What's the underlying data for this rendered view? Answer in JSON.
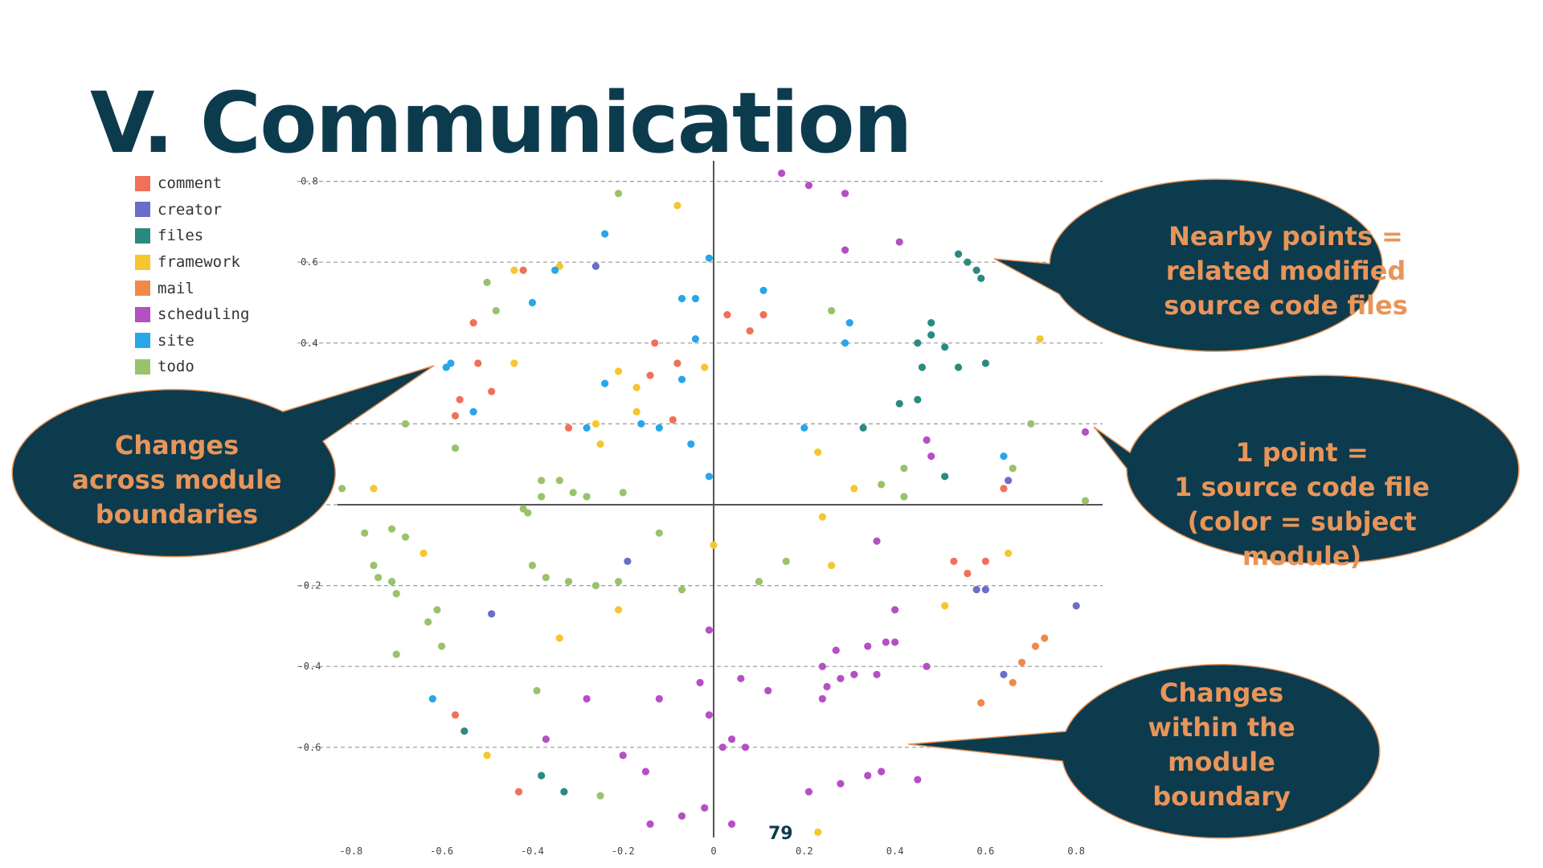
{
  "title": "V. Communication",
  "page_number": "79",
  "callouts": {
    "nearby": [
      "Nearby points =",
      "related modified",
      "source code files"
    ],
    "across": [
      "Changes",
      "across module",
      "boundaries"
    ],
    "one_point": [
      "1 point =",
      "1 source code file",
      "(color = subject",
      "module)"
    ],
    "within": [
      "Changes",
      "within the",
      "module",
      "boundary"
    ]
  },
  "chart_data": {
    "type": "scatter",
    "title": "",
    "xlabel": "",
    "ylabel": "",
    "xlim": [
      -0.82,
      0.86
    ],
    "ylim": [
      -0.82,
      0.82
    ],
    "x_ticks": [
      "-0.8",
      "-0.6",
      "-0.4",
      "-0.2",
      "0",
      "0.2",
      "0.4",
      "0.6",
      "0.8"
    ],
    "y_ticks": [
      "0.8",
      "0.6",
      "0.4",
      "0.2",
      "0",
      "-0.2",
      "-0.4",
      "-0.6"
    ],
    "grid": "horizontal dashed",
    "legend": "top-left",
    "series": [
      {
        "name": "comment",
        "color": "#f0705a",
        "points": [
          [
            -0.42,
            0.58
          ],
          [
            -0.53,
            0.45
          ],
          [
            -0.52,
            0.35
          ],
          [
            -0.56,
            0.26
          ],
          [
            -0.49,
            0.28
          ],
          [
            -0.57,
            0.22
          ],
          [
            -0.14,
            0.32
          ],
          [
            -0.13,
            0.4
          ],
          [
            -0.08,
            0.35
          ],
          [
            0.03,
            0.47
          ],
          [
            0.11,
            0.47
          ],
          [
            0.08,
            0.43
          ],
          [
            -0.09,
            0.21
          ],
          [
            -0.32,
            0.19
          ],
          [
            0.64,
            0.04
          ],
          [
            0.6,
            -0.14
          ],
          [
            0.53,
            -0.14
          ],
          [
            0.56,
            -0.17
          ],
          [
            -0.57,
            -0.52
          ],
          [
            -0.43,
            -0.71
          ]
        ]
      },
      {
        "name": "creator",
        "color": "#6a6ec9",
        "points": [
          [
            -0.26,
            0.59
          ],
          [
            0.65,
            0.06
          ],
          [
            0.58,
            -0.21
          ],
          [
            0.6,
            -0.21
          ],
          [
            0.8,
            -0.25
          ],
          [
            -0.49,
            -0.27
          ],
          [
            -0.19,
            -0.14
          ],
          [
            0.64,
            -0.42
          ]
        ]
      },
      {
        "name": "files",
        "color": "#2a8a80",
        "points": [
          [
            0.54,
            0.62
          ],
          [
            0.56,
            0.6
          ],
          [
            0.58,
            0.58
          ],
          [
            0.59,
            0.56
          ],
          [
            0.48,
            0.45
          ],
          [
            0.48,
            0.42
          ],
          [
            0.45,
            0.4
          ],
          [
            0.51,
            0.39
          ],
          [
            0.46,
            0.34
          ],
          [
            0.54,
            0.34
          ],
          [
            0.6,
            0.35
          ],
          [
            0.41,
            0.25
          ],
          [
            0.45,
            0.26
          ],
          [
            0.33,
            0.19
          ],
          [
            0.51,
            0.07
          ],
          [
            -0.55,
            -0.56
          ],
          [
            -0.38,
            -0.67
          ],
          [
            -0.33,
            -0.71
          ]
        ]
      },
      {
        "name": "framework",
        "color": "#f7c52e",
        "points": [
          [
            -0.08,
            0.74
          ],
          [
            -0.34,
            0.59
          ],
          [
            -0.44,
            0.58
          ],
          [
            -0.44,
            0.35
          ],
          [
            -0.26,
            0.2
          ],
          [
            -0.25,
            0.15
          ],
          [
            -0.17,
            0.29
          ],
          [
            -0.17,
            0.23
          ],
          [
            -0.21,
            0.33
          ],
          [
            -0.02,
            0.34
          ],
          [
            0.72,
            0.41
          ],
          [
            0.23,
            0.13
          ],
          [
            0.31,
            0.04
          ],
          [
            0.24,
            -0.03
          ],
          [
            0.26,
            -0.15
          ],
          [
            0.51,
            -0.25
          ],
          [
            0.65,
            -0.12
          ],
          [
            0.0,
            -0.1
          ],
          [
            -0.64,
            -0.12
          ],
          [
            -0.75,
            0.04
          ],
          [
            -0.5,
            -0.62
          ],
          [
            -0.34,
            -0.33
          ],
          [
            -0.21,
            -0.26
          ],
          [
            0.23,
            -0.81
          ]
        ]
      },
      {
        "name": "mail",
        "color": "#f08a48",
        "points": [
          [
            0.73,
            -0.33
          ],
          [
            0.71,
            -0.35
          ],
          [
            0.68,
            -0.39
          ],
          [
            0.66,
            -0.44
          ],
          [
            0.59,
            -0.49
          ]
        ]
      },
      {
        "name": "scheduling",
        "color": "#b54fc4",
        "points": [
          [
            0.15,
            0.82
          ],
          [
            0.21,
            0.79
          ],
          [
            0.29,
            0.77
          ],
          [
            0.29,
            0.63
          ],
          [
            0.41,
            0.65
          ],
          [
            0.47,
            0.16
          ],
          [
            0.48,
            0.12
          ],
          [
            0.82,
            0.18
          ],
          [
            0.36,
            -0.09
          ],
          [
            0.4,
            -0.26
          ],
          [
            0.34,
            -0.35
          ],
          [
            0.38,
            -0.34
          ],
          [
            0.4,
            -0.34
          ],
          [
            0.27,
            -0.36
          ],
          [
            0.24,
            -0.4
          ],
          [
            0.28,
            -0.43
          ],
          [
            0.31,
            -0.42
          ],
          [
            0.36,
            -0.42
          ],
          [
            0.47,
            -0.4
          ],
          [
            0.25,
            -0.45
          ],
          [
            0.24,
            -0.48
          ],
          [
            0.12,
            -0.46
          ],
          [
            -0.01,
            -0.31
          ],
          [
            -0.03,
            -0.44
          ],
          [
            -0.12,
            -0.48
          ],
          [
            0.06,
            -0.43
          ],
          [
            -0.01,
            -0.52
          ],
          [
            0.02,
            -0.6
          ],
          [
            0.04,
            -0.58
          ],
          [
            0.07,
            -0.6
          ],
          [
            -0.28,
            -0.48
          ],
          [
            -0.37,
            -0.58
          ],
          [
            -0.2,
            -0.62
          ],
          [
            -0.15,
            -0.66
          ],
          [
            0.21,
            -0.71
          ],
          [
            0.28,
            -0.69
          ],
          [
            0.34,
            -0.67
          ],
          [
            0.37,
            -0.66
          ],
          [
            0.45,
            -0.68
          ],
          [
            -0.07,
            -0.77
          ],
          [
            -0.02,
            -0.75
          ],
          [
            0.04,
            -0.79
          ],
          [
            -0.14,
            -0.79
          ]
        ]
      },
      {
        "name": "site",
        "color": "#27a7e8",
        "points": [
          [
            -0.24,
            0.67
          ],
          [
            -0.01,
            0.61
          ],
          [
            -0.4,
            0.5
          ],
          [
            -0.35,
            0.58
          ],
          [
            -0.07,
            0.51
          ],
          [
            -0.04,
            0.51
          ],
          [
            0.11,
            0.53
          ],
          [
            0.29,
            0.4
          ],
          [
            0.3,
            0.45
          ],
          [
            -0.04,
            0.41
          ],
          [
            -0.58,
            0.35
          ],
          [
            -0.59,
            0.34
          ],
          [
            -0.24,
            0.3
          ],
          [
            -0.07,
            0.31
          ],
          [
            -0.53,
            0.23
          ],
          [
            -0.28,
            0.19
          ],
          [
            -0.16,
            0.2
          ],
          [
            -0.12,
            0.19
          ],
          [
            -0.05,
            0.15
          ],
          [
            -0.01,
            0.07
          ],
          [
            0.2,
            0.19
          ],
          [
            -0.62,
            -0.48
          ],
          [
            0.64,
            0.12
          ]
        ]
      },
      {
        "name": "todo",
        "color": "#98c36b",
        "points": [
          [
            -0.21,
            0.77
          ],
          [
            -0.5,
            0.55
          ],
          [
            -0.48,
            0.48
          ],
          [
            0.26,
            0.48
          ],
          [
            -0.68,
            0.2
          ],
          [
            -0.57,
            0.14
          ],
          [
            -0.38,
            0.06
          ],
          [
            -0.34,
            0.06
          ],
          [
            -0.31,
            0.03
          ],
          [
            -0.28,
            0.02
          ],
          [
            -0.2,
            0.03
          ],
          [
            -0.38,
            0.02
          ],
          [
            -0.42,
            -0.01
          ],
          [
            -0.41,
            -0.02
          ],
          [
            -0.82,
            0.04
          ],
          [
            0.7,
            0.2
          ],
          [
            0.42,
            0.09
          ],
          [
            0.37,
            0.05
          ],
          [
            0.42,
            0.02
          ],
          [
            0.82,
            0.01
          ],
          [
            0.66,
            0.09
          ],
          [
            -0.77,
            -0.07
          ],
          [
            -0.71,
            -0.06
          ],
          [
            -0.68,
            -0.08
          ],
          [
            -0.75,
            -0.15
          ],
          [
            -0.74,
            -0.18
          ],
          [
            -0.71,
            -0.19
          ],
          [
            -0.7,
            -0.22
          ],
          [
            -0.4,
            -0.15
          ],
          [
            -0.37,
            -0.18
          ],
          [
            -0.32,
            -0.19
          ],
          [
            -0.26,
            -0.2
          ],
          [
            -0.21,
            -0.19
          ],
          [
            -0.12,
            -0.07
          ],
          [
            -0.07,
            -0.21
          ],
          [
            0.1,
            -0.19
          ],
          [
            0.16,
            -0.14
          ],
          [
            -0.61,
            -0.26
          ],
          [
            -0.63,
            -0.29
          ],
          [
            -0.6,
            -0.35
          ],
          [
            -0.7,
            -0.37
          ],
          [
            -0.39,
            -0.46
          ],
          [
            -0.25,
            -0.72
          ]
        ]
      }
    ]
  }
}
